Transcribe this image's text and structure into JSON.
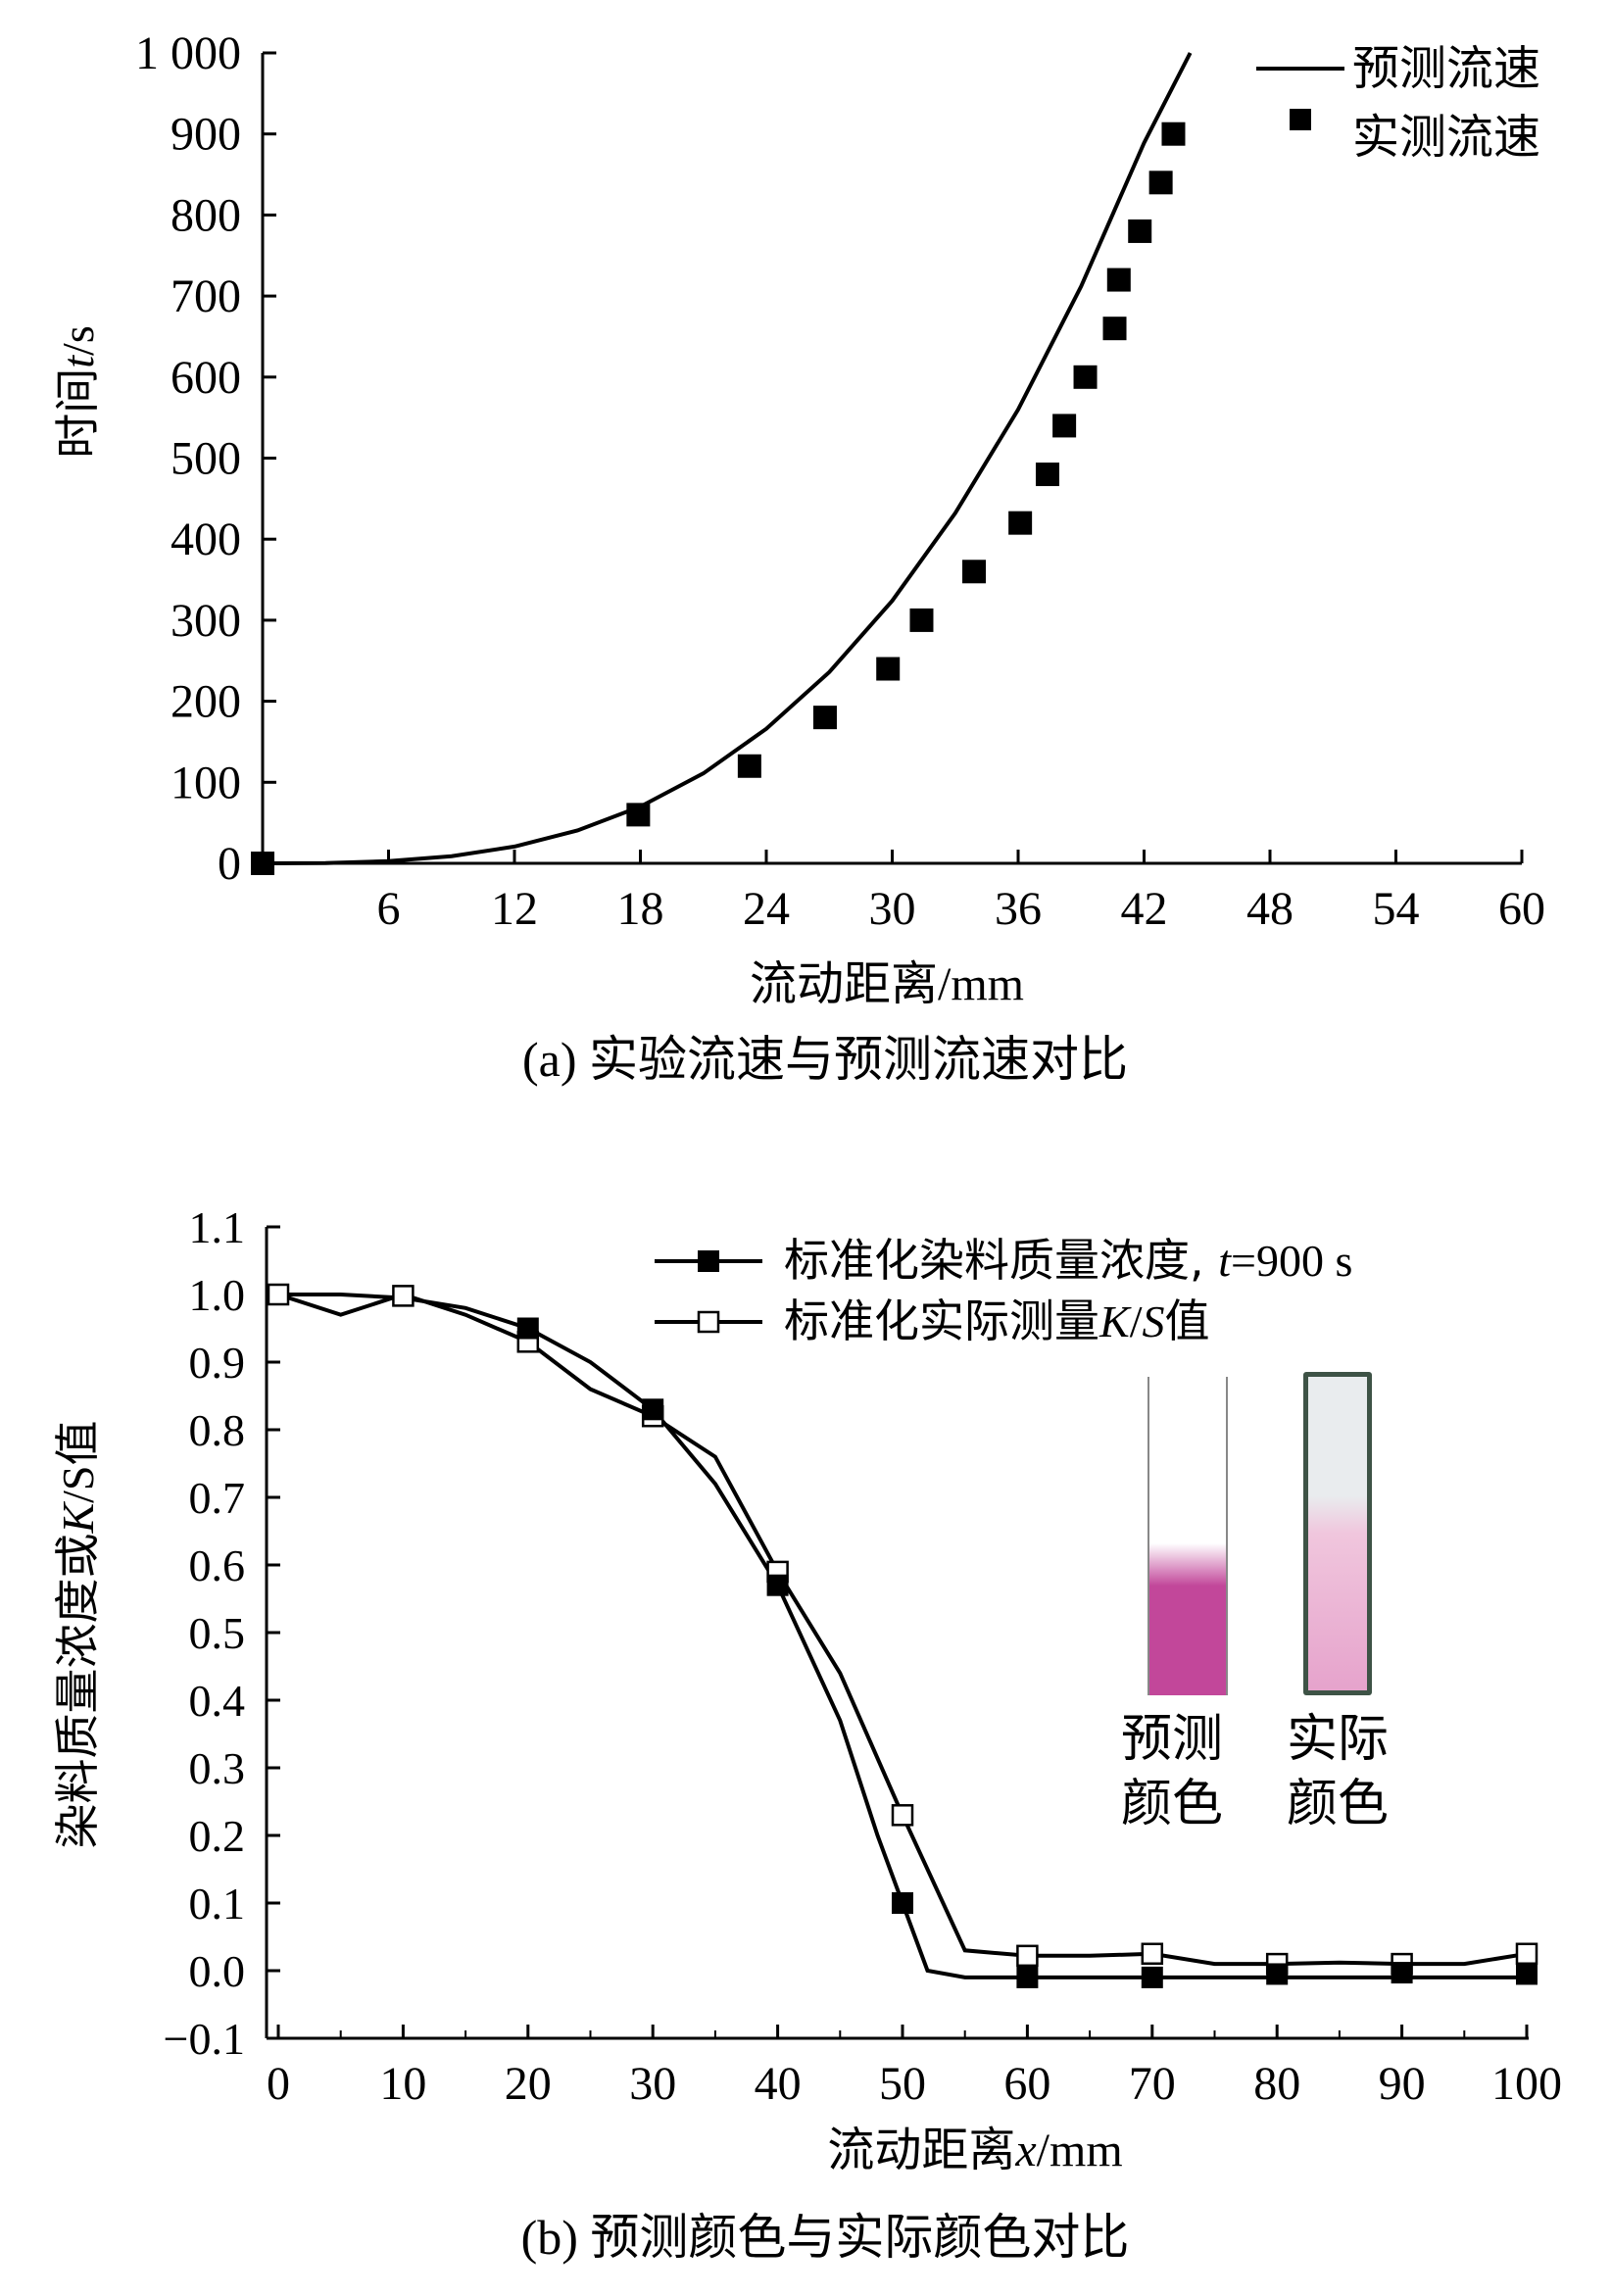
{
  "chart_data": [
    {
      "type": "scatter",
      "panel": "a",
      "caption": "(a) 实验流速与预测流速对比",
      "xlabel": "流动距离/mm",
      "ylabel": "时间t/s",
      "xlim": [
        0,
        60
      ],
      "ylim": [
        0,
        1000
      ],
      "xticks": [
        6,
        12,
        18,
        24,
        30,
        36,
        42,
        48,
        54,
        60
      ],
      "yticks": [
        0,
        100,
        200,
        300,
        400,
        500,
        600,
        700,
        800,
        900,
        1000
      ],
      "ytick_labels": [
        "0",
        "100",
        "200",
        "300",
        "400",
        "500",
        "600",
        "700",
        "800",
        "900",
        "1 000"
      ],
      "grid": false,
      "legend_position": "top-right",
      "series": [
        {
          "name": "预测流速",
          "style": "line",
          "color": "#000000",
          "x": [
            0,
            3,
            6,
            9,
            12,
            15,
            18,
            21,
            24,
            27,
            30,
            33,
            36,
            39,
            42,
            44.2
          ],
          "y": [
            0,
            0.3,
            2.6,
            8.8,
            20.7,
            40.5,
            70,
            111,
            166,
            236,
            324,
            432,
            560,
            712,
            889,
            1000
          ]
        },
        {
          "name": "实测流速",
          "style": "marker-filled-square",
          "color": "#000000",
          "x": [
            0,
            17.9,
            23.2,
            26.8,
            29.8,
            31.4,
            33.9,
            36.1,
            37.4,
            38.2,
            39.2,
            40.6,
            40.8,
            41.8,
            42.8,
            43.4
          ],
          "y": [
            0,
            60,
            120,
            180,
            240,
            300,
            360,
            420,
            480,
            540,
            600,
            660,
            720,
            780,
            840,
            900
          ]
        }
      ]
    },
    {
      "type": "line",
      "panel": "b",
      "caption": "(b) 预测颜色与实际颜色对比",
      "xlabel": "流动距离x/mm",
      "ylabel": "染料质量浓度或K/S值",
      "xlim": [
        0,
        100
      ],
      "ylim": [
        -0.1,
        1.1
      ],
      "xticks": [
        0,
        10,
        20,
        30,
        40,
        50,
        60,
        70,
        80,
        90,
        100
      ],
      "yticks": [
        -0.1,
        0.0,
        0.1,
        0.2,
        0.3,
        0.4,
        0.5,
        0.6,
        0.7,
        0.8,
        0.9,
        1.0,
        1.1
      ],
      "ytick_labels": [
        "−0.1",
        "0.0",
        "0.1",
        "0.2",
        "0.3",
        "0.4",
        "0.5",
        "0.6",
        "0.7",
        "0.8",
        "0.9",
        "1.0",
        "1.1"
      ],
      "grid": false,
      "legend_position": "top-right",
      "series": [
        {
          "name": "标准化染料质量浓度, t=900 s",
          "marker": "filled-square",
          "color": "#000000",
          "line_x": [
            0,
            5,
            10,
            15,
            20,
            25,
            30,
            35,
            40,
            45,
            48,
            50,
            52,
            55,
            60,
            70,
            80,
            90,
            100
          ],
          "line_y": [
            1.0,
            1.0,
            0.995,
            0.98,
            0.95,
            0.9,
            0.83,
            0.72,
            0.57,
            0.37,
            0.2,
            0.1,
            0.0,
            -0.01,
            -0.01,
            -0.01,
            -0.01,
            -0.01,
            -0.01
          ],
          "marker_x": [
            20,
            30,
            40,
            50,
            60,
            70,
            80,
            90,
            100
          ],
          "marker_y": [
            0.95,
            0.83,
            0.57,
            0.1,
            -0.01,
            -0.01,
            -0.005,
            -0.003,
            -0.005
          ]
        },
        {
          "name": "标准化实际测量K/S值",
          "marker": "open-square",
          "color": "#000000",
          "line_x": [
            0,
            5,
            10,
            15,
            20,
            25,
            30,
            35,
            40,
            45,
            50,
            55,
            60,
            65,
            70,
            75,
            80,
            85,
            90,
            95,
            100
          ],
          "line_y": [
            1.0,
            0.97,
            1.0,
            0.97,
            0.93,
            0.86,
            0.82,
            0.76,
            0.59,
            0.44,
            0.23,
            0.03,
            0.022,
            0.022,
            0.025,
            0.01,
            0.01,
            0.012,
            0.01,
            0.01,
            0.025
          ],
          "marker_x": [
            0,
            10,
            20,
            30,
            40,
            50,
            60,
            70,
            80,
            90,
            100
          ],
          "marker_y": [
            1.0,
            0.998,
            0.93,
            0.82,
            0.59,
            0.23,
            0.022,
            0.025,
            0.01,
            0.01,
            0.025
          ]
        }
      ],
      "annotations": {
        "predicted_label": [
          "预测",
          "颜色"
        ],
        "actual_label": [
          "实际",
          "颜色"
        ],
        "predicted_color": "#c2479a",
        "actual_color": "#e6a3cc",
        "actual_top_color": "#e9ecee",
        "actual_frame_color": "#3e5346"
      }
    }
  ],
  "labels": {
    "a_xlabel_cn": "流动距离",
    "a_xlabel_unit": "/mm",
    "a_ylabel_cn": "时间",
    "a_ylabel_var": "t",
    "a_ylabel_unit": "/s",
    "a_caption_prefix": "(a) ",
    "a_caption_text": "实验流速与预测流速对比",
    "a_legend_1": "预测流速",
    "a_legend_2": "实测流速",
    "b_xlabel_cn": "流动距离",
    "b_xlabel_var": "x",
    "b_xlabel_unit": "/mm",
    "b_ylabel_cn": "染料质量浓度或",
    "b_ylabel_var": "K",
    "b_ylabel_mid": "/",
    "b_ylabel_var2": "S",
    "b_ylabel_tail": "值",
    "b_caption_prefix": "(b) ",
    "b_caption_text": "预测颜色与实际颜色对比",
    "b_legend_1_cn": "标准化染料质量浓度, ",
    "b_legend_1_var": "t",
    "b_legend_1_tail": "=900 s",
    "b_legend_2_cn": "标准化实际测量",
    "b_legend_2_var": "K",
    "b_legend_2_mid": "/",
    "b_legend_2_var2": "S",
    "b_legend_2_tail": "值"
  }
}
